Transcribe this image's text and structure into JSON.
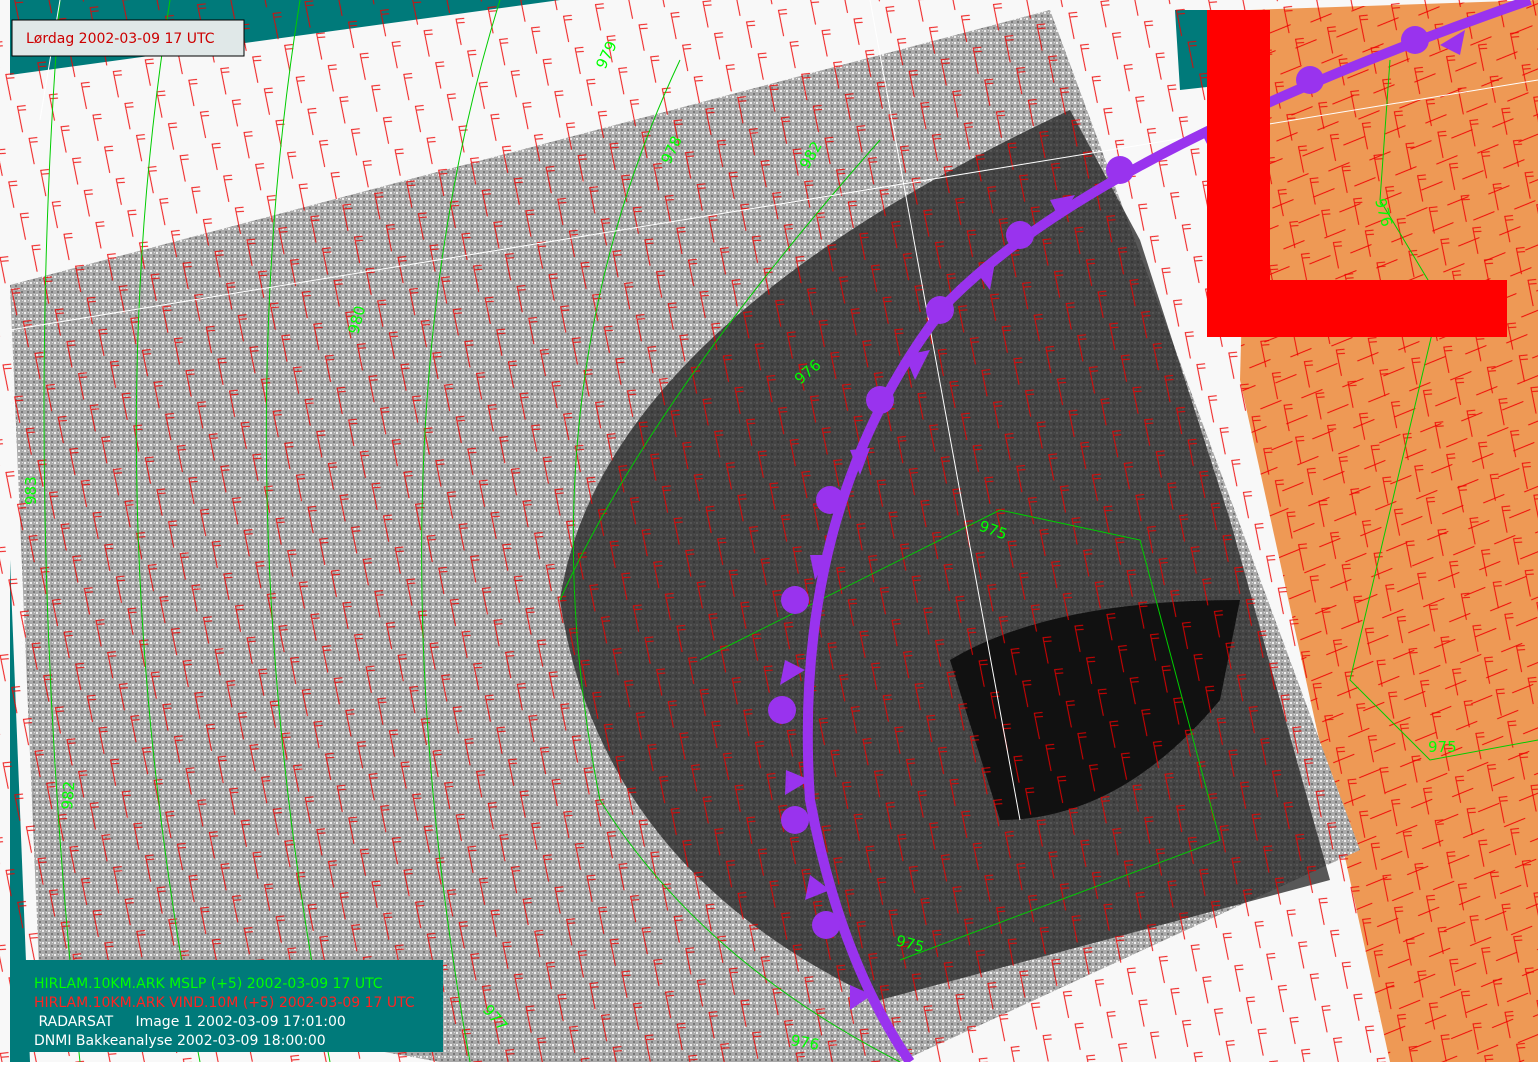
{
  "header": {
    "timestamp": "Lørdag 2002-03-09 17 UTC"
  },
  "legend": {
    "lines": [
      "HIRLAM.10KM.ARK MSLP (+5) 2002-03-09 17 UTC",
      "HIRLAM.10KM.ARK VIND.10M (+5) 2002-03-09 17 UTC",
      " RADARSAT     Image 1 2002-03-09 17:01:00",
      "DNMI Bakkeanalyse 2002-03-09 18:00:00"
    ]
  },
  "isobar_labels": [
    "979",
    "978",
    "982",
    "980",
    "976",
    "983",
    "975",
    "982",
    "975",
    "977",
    "976",
    "975",
    "976"
  ],
  "low_symbol": "L"
}
